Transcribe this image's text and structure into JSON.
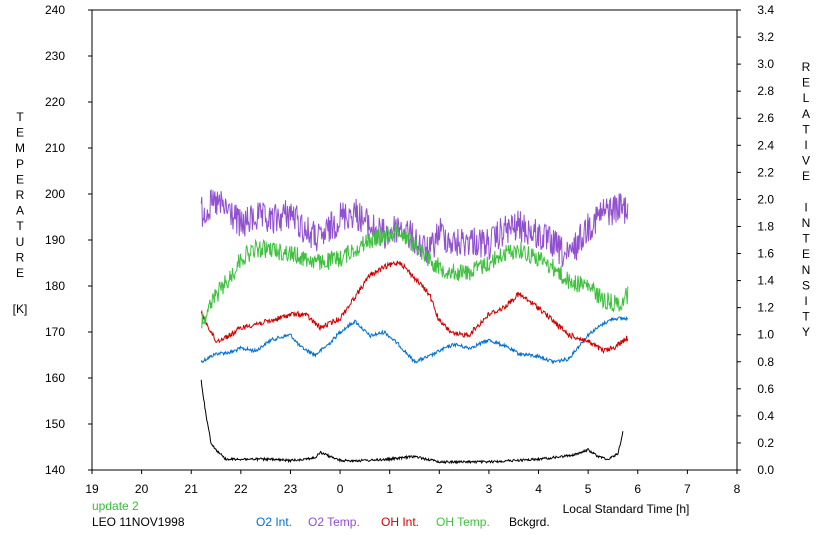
{
  "chart_data": {
    "type": "line",
    "xlabel": "Local Standard Time [h]",
    "ylabel_left": "TEMPERATURE",
    "ylabel_left_unit": "[K]",
    "ylabel_right": "RELATIVE INTENSITY",
    "x_ticks": [
      "19",
      "20",
      "21",
      "22",
      "23",
      "0",
      "1",
      "2",
      "3",
      "4",
      "5",
      "6",
      "7",
      "8"
    ],
    "xlim": [
      19,
      32
    ],
    "ylim_left": [
      140,
      240
    ],
    "ylim_right": [
      0.0,
      3.4
    ],
    "y_left_ticks": [
      140,
      150,
      160,
      170,
      180,
      190,
      200,
      210,
      220,
      230,
      240
    ],
    "y_right_ticks": [
      "0.0",
      "0.2",
      "0.4",
      "0.6",
      "0.8",
      "1.0",
      "1.2",
      "1.4",
      "1.6",
      "1.8",
      "2.0",
      "2.2",
      "2.4",
      "2.6",
      "2.8",
      "3.0",
      "3.2",
      "3.4"
    ],
    "grid": false,
    "legend_position": "bottom",
    "series": [
      {
        "name": "O2 Int.",
        "axis": "right",
        "color": "#0070d0",
        "x": [
          21.2,
          21.5,
          21.8,
          22.0,
          22.3,
          22.6,
          23.0,
          23.2,
          23.5,
          23.8,
          24.0,
          24.3,
          24.6,
          24.9,
          25.2,
          25.5,
          25.8,
          26.0,
          26.3,
          26.6,
          27.0,
          27.3,
          27.6,
          28.0,
          28.3,
          28.6,
          29.0,
          29.3,
          29.5,
          29.8
        ],
        "y": [
          0.8,
          0.86,
          0.87,
          0.9,
          0.88,
          0.96,
          1.0,
          0.91,
          0.85,
          0.94,
          1.02,
          1.1,
          0.99,
          1.02,
          0.92,
          0.8,
          0.84,
          0.88,
          0.93,
          0.9,
          0.96,
          0.92,
          0.86,
          0.84,
          0.8,
          0.82,
          1.0,
          1.08,
          1.12,
          1.12
        ]
      },
      {
        "name": "O2 Temp.",
        "axis": "left",
        "color": "#9050d0",
        "x": [
          21.2,
          21.5,
          21.8,
          22.0,
          22.3,
          22.6,
          23.0,
          23.3,
          23.6,
          24.0,
          24.3,
          24.6,
          24.9,
          25.2,
          25.5,
          25.8,
          26.0,
          26.3,
          26.6,
          27.0,
          27.3,
          27.6,
          28.0,
          28.3,
          28.6,
          29.0,
          29.3,
          29.6,
          29.8
        ],
        "y": [
          196,
          198,
          196,
          193,
          195,
          194,
          196,
          192,
          190,
          195,
          196,
          193,
          191,
          193,
          190,
          187,
          192,
          189,
          190,
          189,
          192,
          193,
          191,
          189,
          186,
          193,
          196,
          197,
          197
        ]
      },
      {
        "name": "OH Int.",
        "axis": "right",
        "color": "#d00000",
        "x": [
          21.2,
          21.5,
          21.8,
          22.0,
          22.3,
          22.6,
          23.0,
          23.3,
          23.6,
          24.0,
          24.3,
          24.6,
          24.9,
          25.2,
          25.5,
          25.8,
          26.0,
          26.3,
          26.6,
          27.0,
          27.3,
          27.6,
          28.0,
          28.3,
          28.6,
          29.0,
          29.3,
          29.5,
          29.8
        ],
        "y": [
          1.16,
          0.95,
          1.0,
          1.05,
          1.08,
          1.1,
          1.15,
          1.15,
          1.05,
          1.12,
          1.28,
          1.44,
          1.5,
          1.54,
          1.42,
          1.3,
          1.1,
          1.0,
          1.0,
          1.15,
          1.2,
          1.3,
          1.2,
          1.1,
          1.0,
          0.95,
          0.88,
          0.9,
          0.98
        ]
      },
      {
        "name": "OH Temp.",
        "axis": "left",
        "color": "#40c040",
        "x": [
          21.2,
          21.5,
          21.8,
          22.0,
          22.3,
          22.6,
          23.0,
          23.3,
          23.6,
          24.0,
          24.3,
          24.6,
          24.9,
          25.2,
          25.5,
          25.8,
          26.0,
          26.3,
          26.6,
          27.0,
          27.3,
          27.6,
          28.0,
          28.3,
          28.6,
          29.0,
          29.3,
          29.6,
          29.8
        ],
        "y": [
          172,
          178,
          182,
          186,
          188,
          188,
          187,
          186,
          185,
          186,
          188,
          190,
          191,
          192,
          189,
          186,
          184,
          183,
          183,
          185,
          187,
          188,
          186,
          184,
          181,
          180,
          177,
          176,
          178
        ]
      },
      {
        "name": "Bckgrd.",
        "axis": "right",
        "color": "#000000",
        "x": [
          21.2,
          21.3,
          21.4,
          21.5,
          21.7,
          22.0,
          22.5,
          23.0,
          23.5,
          23.6,
          24.0,
          24.5,
          25.0,
          25.5,
          26.0,
          26.5,
          27.0,
          27.5,
          28.0,
          28.5,
          28.8,
          29.0,
          29.2,
          29.4,
          29.6,
          29.7
        ],
        "y": [
          0.66,
          0.4,
          0.2,
          0.15,
          0.08,
          0.08,
          0.08,
          0.07,
          0.09,
          0.13,
          0.07,
          0.07,
          0.08,
          0.1,
          0.06,
          0.06,
          0.06,
          0.07,
          0.08,
          0.1,
          0.12,
          0.15,
          0.1,
          0.08,
          0.12,
          0.28
        ]
      }
    ]
  },
  "annotations": {
    "update": "update 2",
    "station": "LEO 11NOV1998"
  },
  "colors": {
    "update": "#30c030"
  }
}
